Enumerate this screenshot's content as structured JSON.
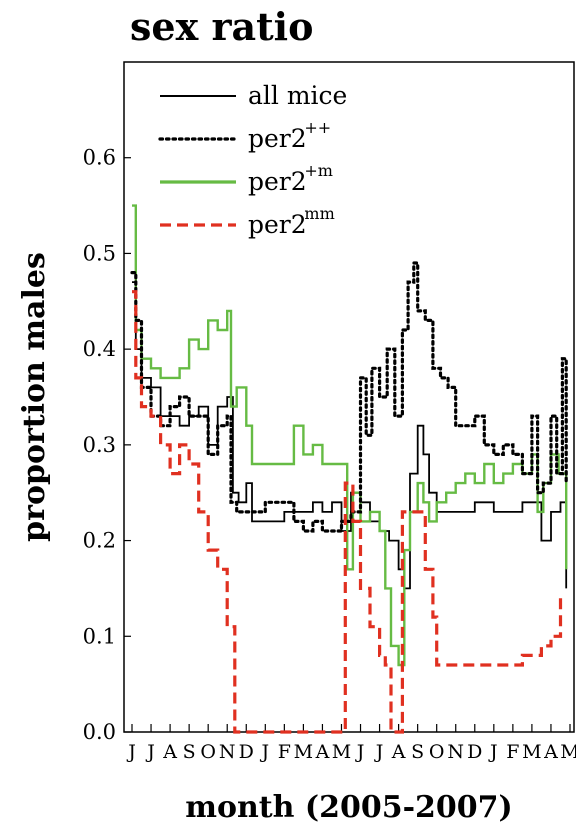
{
  "chart_data": {
    "type": "line",
    "title": "sex ratio",
    "xlabel": "month (2005-2007)",
    "ylabel": "proportion males",
    "ylim": [
      0.0,
      0.7
    ],
    "yticks": [
      {
        "value": 0.0,
        "label": "0.0"
      },
      {
        "value": 0.1,
        "label": "0.1"
      },
      {
        "value": 0.2,
        "label": "0.2"
      },
      {
        "value": 0.3,
        "label": "0.3"
      },
      {
        "value": 0.4,
        "label": "0.4"
      },
      {
        "value": 0.5,
        "label": "0.5"
      },
      {
        "value": 0.6,
        "label": "0.6"
      }
    ],
    "xlim": [
      0,
      23
    ],
    "month_ticks": [
      "J",
      "J",
      "A",
      "S",
      "O",
      "N",
      "D",
      "J",
      "F",
      "M",
      "A",
      "M",
      "J",
      "J",
      "A",
      "S",
      "O",
      "N",
      "D",
      "J",
      "F",
      "M",
      "A",
      "M"
    ],
    "legend_position": "top-left",
    "grid": false,
    "series": [
      {
        "name": "all mice",
        "sup": "",
        "color": "#000000",
        "style": "solid",
        "points": [
          [
            0,
            0.47
          ],
          [
            0.2,
            0.4
          ],
          [
            0.5,
            0.37
          ],
          [
            1,
            0.36
          ],
          [
            1.5,
            0.33
          ],
          [
            2,
            0.33
          ],
          [
            2.5,
            0.32
          ],
          [
            3,
            0.33
          ],
          [
            3.5,
            0.34
          ],
          [
            4,
            0.3
          ],
          [
            4.5,
            0.34
          ],
          [
            5,
            0.35
          ],
          [
            5.3,
            0.25
          ],
          [
            5.6,
            0.24
          ],
          [
            6,
            0.26
          ],
          [
            6.3,
            0.22
          ],
          [
            7,
            0.22
          ],
          [
            8,
            0.23
          ],
          [
            9,
            0.23
          ],
          [
            9.5,
            0.24
          ],
          [
            10,
            0.23
          ],
          [
            10.5,
            0.24
          ],
          [
            11,
            0.21
          ],
          [
            11.5,
            0.25
          ],
          [
            12,
            0.24
          ],
          [
            12.5,
            0.22
          ],
          [
            13,
            0.21
          ],
          [
            13.5,
            0.2
          ],
          [
            14,
            0.17
          ],
          [
            14.3,
            0.15
          ],
          [
            14.6,
            0.27
          ],
          [
            15,
            0.32
          ],
          [
            15.3,
            0.29
          ],
          [
            15.6,
            0.25
          ],
          [
            16,
            0.23
          ],
          [
            16.5,
            0.23
          ],
          [
            17,
            0.23
          ],
          [
            18,
            0.24
          ],
          [
            19,
            0.23
          ],
          [
            20,
            0.23
          ],
          [
            20.5,
            0.24
          ],
          [
            21,
            0.24
          ],
          [
            21.5,
            0.2
          ],
          [
            22,
            0.23
          ],
          [
            22.5,
            0.24
          ],
          [
            22.8,
            0.15
          ]
        ]
      },
      {
        "name": "per2",
        "sup": "++",
        "color": "#000000",
        "style": "dotted",
        "points": [
          [
            0,
            0.48
          ],
          [
            0.2,
            0.43
          ],
          [
            0.5,
            0.36
          ],
          [
            1,
            0.33
          ],
          [
            1.5,
            0.32
          ],
          [
            2,
            0.34
          ],
          [
            2.5,
            0.35
          ],
          [
            3,
            0.33
          ],
          [
            3.5,
            0.33
          ],
          [
            4,
            0.29
          ],
          [
            4.5,
            0.32
          ],
          [
            5,
            0.33
          ],
          [
            5.2,
            0.24
          ],
          [
            5.5,
            0.23
          ],
          [
            6,
            0.23
          ],
          [
            7,
            0.24
          ],
          [
            8,
            0.24
          ],
          [
            8.5,
            0.22
          ],
          [
            9,
            0.21
          ],
          [
            9.5,
            0.22
          ],
          [
            10,
            0.21
          ],
          [
            11,
            0.22
          ],
          [
            11.5,
            0.23
          ],
          [
            12,
            0.37
          ],
          [
            12.3,
            0.31
          ],
          [
            12.6,
            0.38
          ],
          [
            13,
            0.35
          ],
          [
            13.4,
            0.4
          ],
          [
            13.8,
            0.33
          ],
          [
            14.2,
            0.42
          ],
          [
            14.5,
            0.47
          ],
          [
            14.8,
            0.49
          ],
          [
            15,
            0.44
          ],
          [
            15.4,
            0.43
          ],
          [
            15.8,
            0.38
          ],
          [
            16.2,
            0.37
          ],
          [
            16.6,
            0.36
          ],
          [
            17,
            0.32
          ],
          [
            17.5,
            0.32
          ],
          [
            18,
            0.33
          ],
          [
            18.5,
            0.3
          ],
          [
            19,
            0.29
          ],
          [
            19.5,
            0.3
          ],
          [
            20,
            0.29
          ],
          [
            20.5,
            0.27
          ],
          [
            21,
            0.33
          ],
          [
            21.3,
            0.25
          ],
          [
            21.6,
            0.26
          ],
          [
            22,
            0.33
          ],
          [
            22.3,
            0.27
          ],
          [
            22.6,
            0.39
          ],
          [
            22.8,
            0.26
          ]
        ]
      },
      {
        "name": "per2",
        "sup": "+m",
        "color": "#66bb44",
        "style": "solid",
        "points": [
          [
            0,
            0.55
          ],
          [
            0.2,
            0.42
          ],
          [
            0.5,
            0.39
          ],
          [
            1,
            0.38
          ],
          [
            1.5,
            0.37
          ],
          [
            2,
            0.37
          ],
          [
            2.5,
            0.38
          ],
          [
            3,
            0.41
          ],
          [
            3.5,
            0.4
          ],
          [
            4,
            0.43
          ],
          [
            4.5,
            0.42
          ],
          [
            5,
            0.44
          ],
          [
            5.2,
            0.34
          ],
          [
            5.5,
            0.36
          ],
          [
            6,
            0.32
          ],
          [
            6.3,
            0.28
          ],
          [
            7,
            0.28
          ],
          [
            8,
            0.28
          ],
          [
            8.5,
            0.32
          ],
          [
            9,
            0.29
          ],
          [
            9.5,
            0.3
          ],
          [
            10,
            0.28
          ],
          [
            10.5,
            0.28
          ],
          [
            11,
            0.28
          ],
          [
            11.3,
            0.17
          ],
          [
            11.6,
            0.25
          ],
          [
            12,
            0.22
          ],
          [
            12.5,
            0.23
          ],
          [
            13,
            0.21
          ],
          [
            13.3,
            0.15
          ],
          [
            13.6,
            0.09
          ],
          [
            14,
            0.07
          ],
          [
            14.3,
            0.19
          ],
          [
            14.6,
            0.23
          ],
          [
            15,
            0.26
          ],
          [
            15.3,
            0.24
          ],
          [
            15.6,
            0.22
          ],
          [
            16,
            0.24
          ],
          [
            16.5,
            0.25
          ],
          [
            17,
            0.26
          ],
          [
            17.5,
            0.27
          ],
          [
            18,
            0.26
          ],
          [
            18.5,
            0.28
          ],
          [
            19,
            0.26
          ],
          [
            19.5,
            0.27
          ],
          [
            20,
            0.28
          ],
          [
            20.5,
            0.27
          ],
          [
            21,
            0.29
          ],
          [
            21.3,
            0.23
          ],
          [
            21.6,
            0.26
          ],
          [
            22,
            0.29
          ],
          [
            22.4,
            0.27
          ],
          [
            22.8,
            0.17
          ]
        ]
      },
      {
        "name": "per2",
        "sup": "mm",
        "color": "#e03020",
        "style": "dashed",
        "points": [
          [
            0,
            0.46
          ],
          [
            0.2,
            0.37
          ],
          [
            0.5,
            0.34
          ],
          [
            1,
            0.33
          ],
          [
            1.5,
            0.3
          ],
          [
            2,
            0.27
          ],
          [
            2.5,
            0.3
          ],
          [
            3,
            0.28
          ],
          [
            3.5,
            0.23
          ],
          [
            4,
            0.19
          ],
          [
            4.5,
            0.17
          ],
          [
            5,
            0.11
          ],
          [
            5.4,
            0.0
          ],
          [
            6,
            0.0
          ],
          [
            7,
            0.0
          ],
          [
            8,
            0.0
          ],
          [
            9,
            0.0
          ],
          [
            10,
            0.0
          ],
          [
            11,
            0.0
          ],
          [
            11.2,
            0.26
          ],
          [
            11.6,
            0.22
          ],
          [
            12,
            0.15
          ],
          [
            12.5,
            0.11
          ],
          [
            13,
            0.08
          ],
          [
            13.3,
            0.07
          ],
          [
            13.6,
            0.0
          ],
          [
            14,
            0.0
          ],
          [
            14.2,
            0.23
          ],
          [
            15,
            0.23
          ],
          [
            15.4,
            0.17
          ],
          [
            15.8,
            0.12
          ],
          [
            16,
            0.07
          ],
          [
            17,
            0.07
          ],
          [
            18,
            0.07
          ],
          [
            19,
            0.07
          ],
          [
            20,
            0.07
          ],
          [
            20.5,
            0.08
          ],
          [
            21,
            0.08
          ],
          [
            21.5,
            0.09
          ],
          [
            22,
            0.1
          ],
          [
            22.5,
            0.14
          ],
          [
            22.8,
            0.14
          ]
        ]
      }
    ]
  }
}
